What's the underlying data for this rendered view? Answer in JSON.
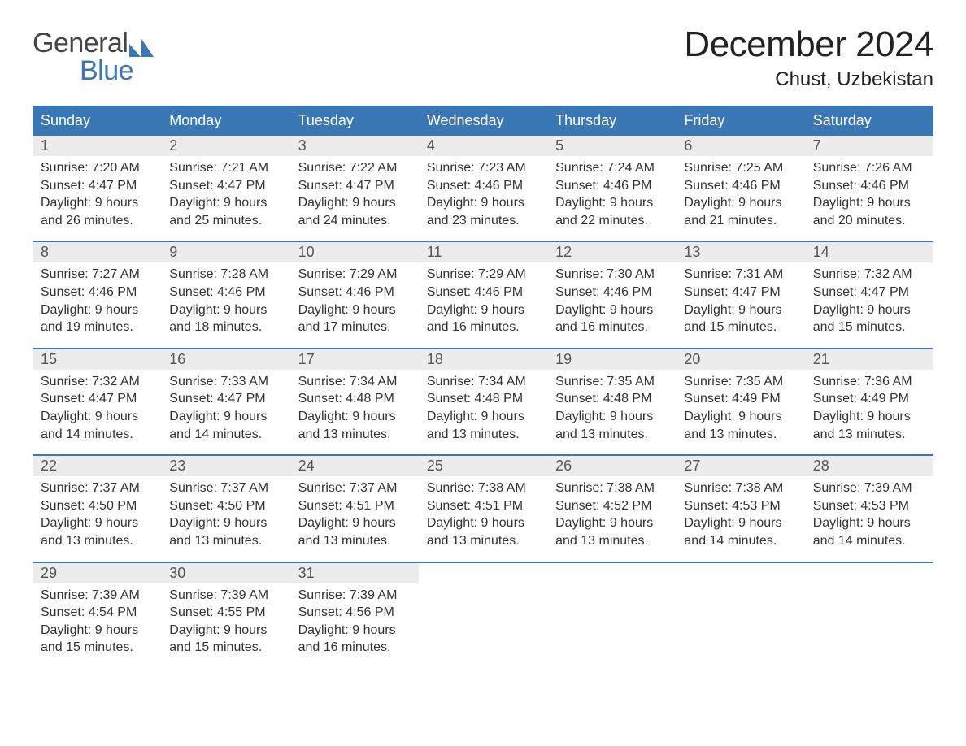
{
  "colors": {
    "brand_blue": "#3a78b5",
    "header_text": "#ffffff",
    "daynum_bg": "#ececec",
    "daynum_text": "#555555",
    "body_text": "#333333",
    "logo_gray": "#444444",
    "background": "#ffffff"
  },
  "typography": {
    "title_fontsize_pt": 33,
    "location_fontsize_pt": 18,
    "dayheader_fontsize_pt": 14,
    "daynum_fontsize_pt": 14,
    "body_fontsize_pt": 12,
    "font_family": "Arial"
  },
  "logo": {
    "text_general": "General",
    "text_blue": "Blue",
    "flag_color": "#3a78b5"
  },
  "title": "December 2024",
  "location": "Chust, Uzbekistan",
  "day_headers": [
    "Sunday",
    "Monday",
    "Tuesday",
    "Wednesday",
    "Thursday",
    "Friday",
    "Saturday"
  ],
  "body_label_sunrise": "Sunrise: ",
  "body_label_sunset": "Sunset: ",
  "body_label_daylight_prefix": "Daylight: ",
  "weeks": [
    [
      {
        "num": "1",
        "sunrise": "7:20 AM",
        "sunset": "4:47 PM",
        "daylight": "9 hours and 26 minutes."
      },
      {
        "num": "2",
        "sunrise": "7:21 AM",
        "sunset": "4:47 PM",
        "daylight": "9 hours and 25 minutes."
      },
      {
        "num": "3",
        "sunrise": "7:22 AM",
        "sunset": "4:47 PM",
        "daylight": "9 hours and 24 minutes."
      },
      {
        "num": "4",
        "sunrise": "7:23 AM",
        "sunset": "4:46 PM",
        "daylight": "9 hours and 23 minutes."
      },
      {
        "num": "5",
        "sunrise": "7:24 AM",
        "sunset": "4:46 PM",
        "daylight": "9 hours and 22 minutes."
      },
      {
        "num": "6",
        "sunrise": "7:25 AM",
        "sunset": "4:46 PM",
        "daylight": "9 hours and 21 minutes."
      },
      {
        "num": "7",
        "sunrise": "7:26 AM",
        "sunset": "4:46 PM",
        "daylight": "9 hours and 20 minutes."
      }
    ],
    [
      {
        "num": "8",
        "sunrise": "7:27 AM",
        "sunset": "4:46 PM",
        "daylight": "9 hours and 19 minutes."
      },
      {
        "num": "9",
        "sunrise": "7:28 AM",
        "sunset": "4:46 PM",
        "daylight": "9 hours and 18 minutes."
      },
      {
        "num": "10",
        "sunrise": "7:29 AM",
        "sunset": "4:46 PM",
        "daylight": "9 hours and 17 minutes."
      },
      {
        "num": "11",
        "sunrise": "7:29 AM",
        "sunset": "4:46 PM",
        "daylight": "9 hours and 16 minutes."
      },
      {
        "num": "12",
        "sunrise": "7:30 AM",
        "sunset": "4:46 PM",
        "daylight": "9 hours and 16 minutes."
      },
      {
        "num": "13",
        "sunrise": "7:31 AM",
        "sunset": "4:47 PM",
        "daylight": "9 hours and 15 minutes."
      },
      {
        "num": "14",
        "sunrise": "7:32 AM",
        "sunset": "4:47 PM",
        "daylight": "9 hours and 15 minutes."
      }
    ],
    [
      {
        "num": "15",
        "sunrise": "7:32 AM",
        "sunset": "4:47 PM",
        "daylight": "9 hours and 14 minutes."
      },
      {
        "num": "16",
        "sunrise": "7:33 AM",
        "sunset": "4:47 PM",
        "daylight": "9 hours and 14 minutes."
      },
      {
        "num": "17",
        "sunrise": "7:34 AM",
        "sunset": "4:48 PM",
        "daylight": "9 hours and 13 minutes."
      },
      {
        "num": "18",
        "sunrise": "7:34 AM",
        "sunset": "4:48 PM",
        "daylight": "9 hours and 13 minutes."
      },
      {
        "num": "19",
        "sunrise": "7:35 AM",
        "sunset": "4:48 PM",
        "daylight": "9 hours and 13 minutes."
      },
      {
        "num": "20",
        "sunrise": "7:35 AM",
        "sunset": "4:49 PM",
        "daylight": "9 hours and 13 minutes."
      },
      {
        "num": "21",
        "sunrise": "7:36 AM",
        "sunset": "4:49 PM",
        "daylight": "9 hours and 13 minutes."
      }
    ],
    [
      {
        "num": "22",
        "sunrise": "7:37 AM",
        "sunset": "4:50 PM",
        "daylight": "9 hours and 13 minutes."
      },
      {
        "num": "23",
        "sunrise": "7:37 AM",
        "sunset": "4:50 PM",
        "daylight": "9 hours and 13 minutes."
      },
      {
        "num": "24",
        "sunrise": "7:37 AM",
        "sunset": "4:51 PM",
        "daylight": "9 hours and 13 minutes."
      },
      {
        "num": "25",
        "sunrise": "7:38 AM",
        "sunset": "4:51 PM",
        "daylight": "9 hours and 13 minutes."
      },
      {
        "num": "26",
        "sunrise": "7:38 AM",
        "sunset": "4:52 PM",
        "daylight": "9 hours and 13 minutes."
      },
      {
        "num": "27",
        "sunrise": "7:38 AM",
        "sunset": "4:53 PM",
        "daylight": "9 hours and 14 minutes."
      },
      {
        "num": "28",
        "sunrise": "7:39 AM",
        "sunset": "4:53 PM",
        "daylight": "9 hours and 14 minutes."
      }
    ],
    [
      {
        "num": "29",
        "sunrise": "7:39 AM",
        "sunset": "4:54 PM",
        "daylight": "9 hours and 15 minutes."
      },
      {
        "num": "30",
        "sunrise": "7:39 AM",
        "sunset": "4:55 PM",
        "daylight": "9 hours and 15 minutes."
      },
      {
        "num": "31",
        "sunrise": "7:39 AM",
        "sunset": "4:56 PM",
        "daylight": "9 hours and 16 minutes."
      },
      null,
      null,
      null,
      null
    ]
  ]
}
